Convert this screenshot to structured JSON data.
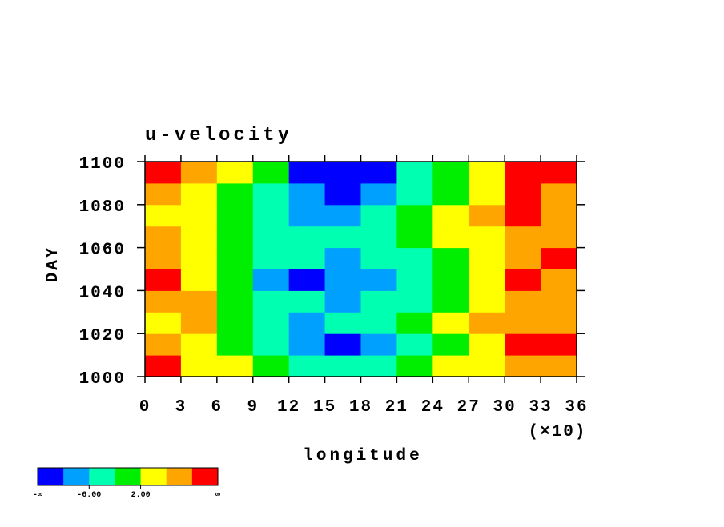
{
  "chart_data": {
    "type": "contour",
    "title": "u-velocity",
    "x_label": "longitude",
    "x_multiplier": "(×10)",
    "y_label": "DAY",
    "xlim": [
      0,
      36
    ],
    "xticks": [
      0,
      3,
      6,
      9,
      12,
      15,
      18,
      21,
      24,
      27,
      30,
      33,
      36
    ],
    "ylim": [
      1000,
      1100
    ],
    "yticks": [
      1000,
      1020,
      1040,
      1060,
      1080,
      1100
    ],
    "x": [
      1.5,
      4.5,
      7.5,
      10.5,
      13.5,
      16.5,
      19.5,
      22.5,
      25.5,
      28.5,
      31.5,
      34.5
    ],
    "y": [
      1005,
      1015,
      1025,
      1035,
      1045,
      1055,
      1065,
      1075,
      1085,
      1095
    ],
    "z": [
      [
        12,
        4,
        2,
        -2,
        -6,
        -6,
        -4,
        -2,
        2,
        4,
        6,
        8
      ],
      [
        6,
        4,
        0,
        -4,
        -8,
        -12,
        -8,
        -4,
        0,
        4,
        12,
        12
      ],
      [
        4,
        6,
        -2,
        -6,
        -8,
        -6,
        -6,
        -2,
        2,
        6,
        8,
        8
      ],
      [
        8,
        6,
        -2,
        -4,
        -6,
        -8,
        -6,
        -4,
        0,
        4,
        6,
        6
      ],
      [
        12,
        4,
        -2,
        -8,
        -12,
        -8,
        -8,
        -4,
        -2,
        2,
        12,
        8
      ],
      [
        8,
        4,
        -2,
        -4,
        -6,
        -8,
        -6,
        -4,
        0,
        2,
        8,
        12
      ],
      [
        6,
        2,
        0,
        -4,
        -6,
        -6,
        -4,
        -2,
        2,
        4,
        6,
        6
      ],
      [
        4,
        2,
        -2,
        -6,
        -8,
        -8,
        -6,
        -2,
        2,
        8,
        12,
        6
      ],
      [
        8,
        4,
        0,
        -4,
        -8,
        -12,
        -8,
        -4,
        0,
        4,
        12,
        8
      ],
      [
        12,
        6,
        2,
        -2,
        -12,
        -12,
        -12,
        -6,
        -2,
        2,
        12,
        12
      ]
    ],
    "levels": [
      -10,
      -6,
      -2,
      2,
      6,
      10
    ],
    "colors": [
      "#0000ff",
      "#00a0ff",
      "#00ffb0",
      "#00ee00",
      "#ffff00",
      "#ffa500",
      "#ff0000"
    ],
    "colorbar": {
      "ends": [
        "-∞",
        "∞"
      ],
      "ticks": [
        {
          "value": -6,
          "label": "-6.00"
        },
        {
          "value": 2,
          "label": "2.00"
        }
      ]
    }
  }
}
